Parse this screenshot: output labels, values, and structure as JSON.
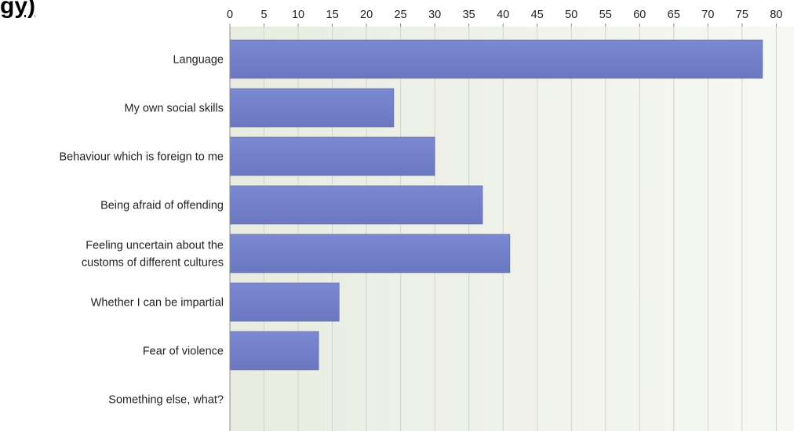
{
  "heading_fragment": "gy)",
  "chart_data": {
    "type": "bar",
    "orientation": "horizontal",
    "categories": [
      "Language",
      "My own social skills",
      "Behaviour which is foreign to me",
      "Being afraid of offending",
      "Feeling uncertain about the customs of different cultures",
      "Whether I can be impartial",
      "Fear of violence",
      "Something else, what?"
    ],
    "category_label_lines": [
      [
        "Language"
      ],
      [
        "My own social skills"
      ],
      [
        "Behaviour which is foreign to me"
      ],
      [
        "Being afraid of offending"
      ],
      [
        "Feeling uncertain about the ",
        "customs of different cultures"
      ],
      [
        "Whether I can be impartial"
      ],
      [
        "Fear of violence"
      ],
      [
        "Something else, what?"
      ]
    ],
    "values": [
      78,
      24,
      30,
      37,
      41,
      16,
      13,
      0
    ],
    "xlim": [
      0,
      80
    ],
    "xticks": [
      0,
      5,
      10,
      15,
      20,
      25,
      30,
      35,
      40,
      45,
      50,
      55,
      60,
      65,
      70,
      75,
      80
    ],
    "axis_position": "top",
    "grid": true,
    "bar_color": "#7b88d2",
    "bar_color_dark": "#6b78c0",
    "plot_bg_left": "#e8ece0",
    "plot_bg_right": "#f7f8f4",
    "grid_color": "#cfd5c6"
  }
}
